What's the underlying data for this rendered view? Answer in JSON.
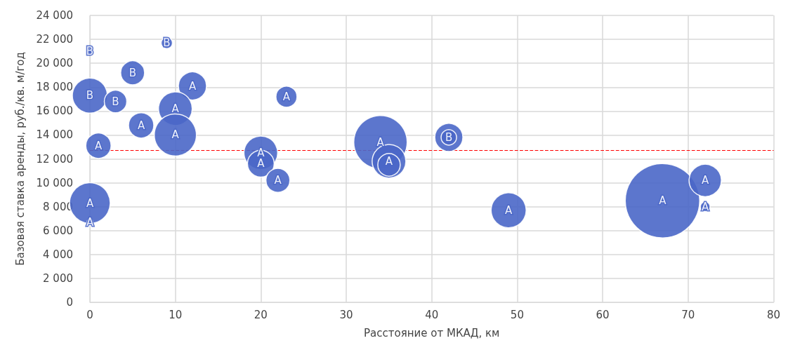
{
  "chart_data": {
    "type": "bubble",
    "xlabel": "Расстояние от МКАД, км",
    "ylabel": "Базовая ставка аренды, руб./кв. м/год",
    "series": [
      {
        "color": "#4a67c8",
        "x": [
          0,
          9,
          5,
          0,
          3,
          12,
          10,
          6,
          10,
          1,
          0,
          0,
          23,
          20,
          20,
          22,
          34,
          35,
          35,
          42,
          42,
          49,
          67,
          72,
          72
        ],
        "values": [
          21000,
          21700,
          19200,
          17300,
          16800,
          18100,
          16200,
          14800,
          14000,
          13100,
          8300,
          6700,
          17200,
          12500,
          11600,
          10200,
          13400,
          11800,
          11500,
          13800,
          13800,
          7700,
          8500,
          10200,
          8000
        ],
        "sizes": [
          0.006,
          0.023,
          0.103,
          0.222,
          0.091,
          0.142,
          0.205,
          0.115,
          0.32,
          0.115,
          0.299,
          0.006,
          0.08,
          0.205,
          0.129,
          0.103,
          0.514,
          0.205,
          0.091,
          0.142,
          0.043,
          0.222,
          1,
          0.188,
          0.017
        ],
        "value_labels": [
          "B",
          "B",
          "B",
          "B",
          "B",
          "A",
          "A",
          "A",
          "A",
          "A",
          "A",
          "A",
          "A",
          "A",
          "A",
          "A",
          "A",
          "A",
          null,
          null,
          "B",
          "A",
          "A",
          "A",
          "A"
        ]
      }
    ],
    "xlim": [
      0,
      80
    ],
    "xticks": [
      0,
      10,
      20,
      30,
      40,
      50,
      60,
      70,
      80
    ],
    "ylim": [
      0,
      24000
    ],
    "yticks": [
      0,
      {
        "value": 2000,
        "label": "2 000"
      },
      {
        "value": 4000,
        "label": "4 000"
      },
      {
        "value": 6000,
        "label": "6 000"
      },
      {
        "value": 8000,
        "label": "8 000"
      },
      {
        "value": 10000,
        "label": "10 000"
      },
      {
        "value": 12000,
        "label": "12 000"
      },
      {
        "value": 14000,
        "label": "14 000"
      },
      {
        "value": 16000,
        "label": "16 000"
      },
      {
        "value": 18000,
        "label": "18 000"
      },
      {
        "value": 20000,
        "label": "20 000"
      },
      {
        "value": 22000,
        "label": "22 000"
      },
      {
        "value": 24000,
        "label": "24 000"
      }
    ],
    "ref_lines": [
      {
        "axis": "y",
        "value": 12700,
        "color": "#ff0000",
        "line_style": "dashed"
      }
    ],
    "grid": true,
    "legend": false
  }
}
